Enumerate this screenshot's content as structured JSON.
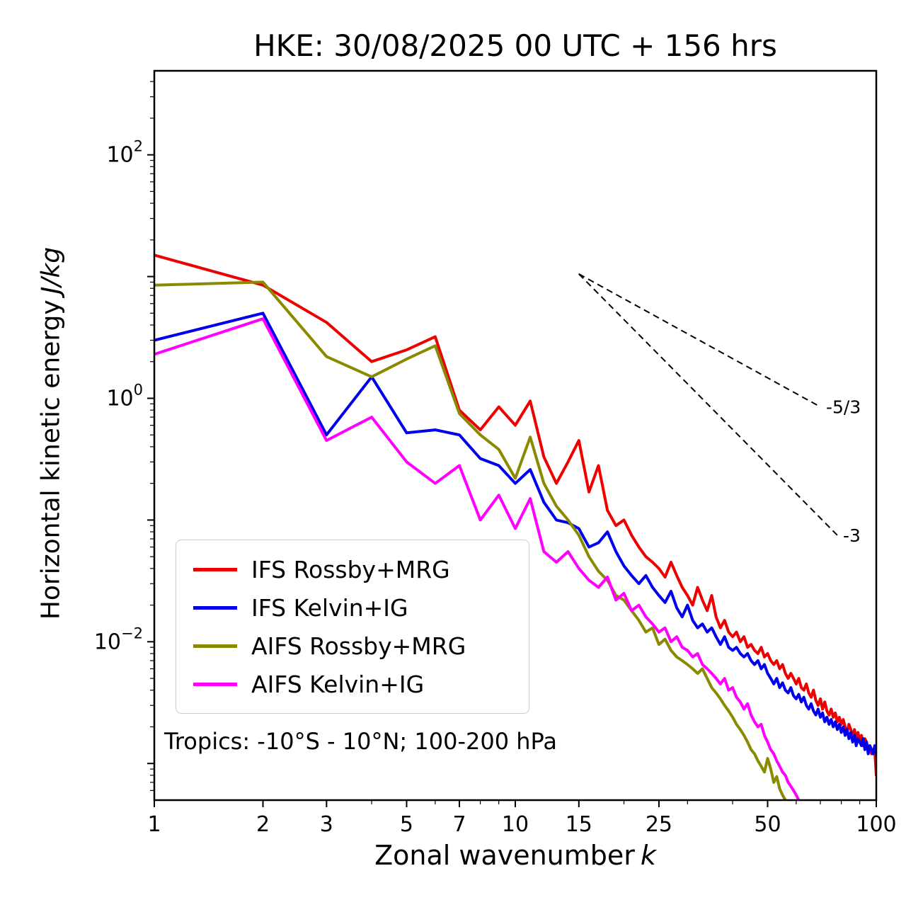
{
  "chart_data": {
    "type": "line",
    "title": "HKE: 30/08/2025 00 UTC + 156 hrs",
    "xlabel_text": "Zonal wavenumber",
    "xlabel_var": "k",
    "ylabel_text": "Horizontal kinetic energy",
    "ylabel_var": "J/kg",
    "annotation": "Tropics: -10°S - 10°N; 100-200 hPa",
    "x_scale": "log",
    "y_scale": "log",
    "xlim": [
      1,
      100
    ],
    "ylim": [
      0.0005,
      490
    ],
    "x_ticks": [
      1,
      2,
      3,
      5,
      7,
      10,
      15,
      25,
      50,
      100
    ],
    "x_minor_ticks": [
      4,
      6,
      8,
      9,
      20,
      30,
      40,
      60,
      70,
      80,
      90
    ],
    "y_tick_exponents": [
      2,
      0,
      -2
    ],
    "legend_position": "lower-left",
    "grid": false,
    "series": [
      {
        "name": "IFS Rossby+MRG",
        "color": "#ee0000",
        "x_start": 1,
        "values": [
          15,
          8.5,
          4.2,
          2.0,
          2.5,
          3.2,
          0.8,
          0.55,
          0.85,
          0.6,
          0.95,
          0.33,
          0.2,
          0.3,
          0.45,
          0.17,
          0.28,
          0.12,
          0.09,
          0.1,
          0.075,
          0.06,
          0.05,
          0.045,
          0.04,
          0.034,
          0.045,
          0.035,
          0.028,
          0.024,
          0.02,
          0.028,
          0.022,
          0.018,
          0.024,
          0.016,
          0.013,
          0.015,
          0.012,
          0.011,
          0.012,
          0.01,
          0.011,
          0.009,
          0.0095,
          0.0085,
          0.008,
          0.009,
          0.0075,
          0.008,
          0.007,
          0.0065,
          0.007,
          0.006,
          0.0065,
          0.0055,
          0.005,
          0.0055,
          0.005,
          0.0045,
          0.005,
          0.0042,
          0.004,
          0.0045,
          0.0038,
          0.0035,
          0.004,
          0.0033,
          0.003,
          0.0034,
          0.0028,
          0.0032,
          0.0027,
          0.0025,
          0.0028,
          0.0024,
          0.0026,
          0.0022,
          0.0024,
          0.0021,
          0.0023,
          0.002,
          0.0018,
          0.0021,
          0.0019,
          0.0017,
          0.0019,
          0.0016,
          0.0018,
          0.0015,
          0.0017,
          0.0014,
          0.0016,
          0.0015,
          0.0013,
          0.0014,
          0.0012,
          0.0013,
          0.0013,
          0.0008
        ]
      },
      {
        "name": "IFS Kelvin+IG",
        "color": "#0000ee",
        "x_start": 1,
        "values": [
          3.0,
          5.0,
          0.5,
          1.5,
          0.52,
          0.55,
          0.5,
          0.32,
          0.28,
          0.2,
          0.26,
          0.14,
          0.1,
          0.095,
          0.085,
          0.06,
          0.065,
          0.08,
          0.055,
          0.042,
          0.035,
          0.03,
          0.035,
          0.028,
          0.024,
          0.021,
          0.026,
          0.019,
          0.016,
          0.02,
          0.015,
          0.013,
          0.014,
          0.012,
          0.013,
          0.011,
          0.0095,
          0.011,
          0.009,
          0.0085,
          0.009,
          0.008,
          0.0075,
          0.008,
          0.007,
          0.0065,
          0.007,
          0.006,
          0.0065,
          0.0055,
          0.005,
          0.0045,
          0.005,
          0.0042,
          0.0046,
          0.004,
          0.0038,
          0.0042,
          0.0036,
          0.0034,
          0.0037,
          0.0032,
          0.0035,
          0.003,
          0.0028,
          0.0031,
          0.0027,
          0.0025,
          0.0028,
          0.0024,
          0.0026,
          0.0022,
          0.0024,
          0.0021,
          0.0023,
          0.002,
          0.0022,
          0.0019,
          0.0021,
          0.0018,
          0.002,
          0.0017,
          0.0019,
          0.0016,
          0.0018,
          0.0015,
          0.0017,
          0.0014,
          0.0016,
          0.0015,
          0.0014,
          0.0016,
          0.0013,
          0.0015,
          0.0012,
          0.0014,
          0.0013,
          0.0012,
          0.0014,
          0.0012
        ]
      },
      {
        "name": "AIFS Rossby+MRG",
        "color": "#8a8a00",
        "x_start": 1,
        "values": [
          8.5,
          9.0,
          2.2,
          1.5,
          2.1,
          2.7,
          0.75,
          0.5,
          0.38,
          0.22,
          0.48,
          0.2,
          0.13,
          0.1,
          0.075,
          0.05,
          0.038,
          0.032,
          0.024,
          0.022,
          0.018,
          0.015,
          0.012,
          0.013,
          0.0095,
          0.0105,
          0.0085,
          0.0075,
          0.007,
          0.0065,
          0.006,
          0.0055,
          0.006,
          0.005,
          0.0042,
          0.0038,
          0.0034,
          0.003,
          0.0027,
          0.0024,
          0.0021,
          0.0019,
          0.0017,
          0.0015,
          0.0013,
          0.0012,
          0.00105,
          0.00095,
          0.00085,
          0.0011,
          0.0009,
          0.0007,
          0.00078,
          0.00062,
          0.00055,
          0.0005,
          0.00045,
          0.0004,
          0.00042,
          0.00035,
          0.0003,
          0.00032
        ]
      },
      {
        "name": "AIFS Kelvin+IG",
        "color": "#ff00ff",
        "x_start": 1,
        "values": [
          2.3,
          4.5,
          0.45,
          0.7,
          0.3,
          0.2,
          0.28,
          0.1,
          0.16,
          0.085,
          0.15,
          0.055,
          0.045,
          0.055,
          0.04,
          0.032,
          0.028,
          0.034,
          0.022,
          0.025,
          0.018,
          0.02,
          0.016,
          0.014,
          0.012,
          0.013,
          0.01,
          0.011,
          0.009,
          0.0085,
          0.0075,
          0.008,
          0.0065,
          0.006,
          0.0055,
          0.005,
          0.0045,
          0.005,
          0.004,
          0.0042,
          0.0035,
          0.0032,
          0.0028,
          0.0031,
          0.0025,
          0.0022,
          0.002,
          0.0021,
          0.0017,
          0.0015,
          0.0013,
          0.0012,
          0.00105,
          0.00095,
          0.00085,
          0.0008,
          0.0007,
          0.00065,
          0.0006,
          0.00055,
          0.0005,
          0.00042
        ]
      }
    ],
    "reference_lines": [
      {
        "label": "-5/3",
        "x": [
          15,
          70
        ],
        "y": [
          10.5,
          0.85
        ]
      },
      {
        "label": "-3",
        "x": [
          15,
          78
        ],
        "y": [
          10.5,
          0.075
        ]
      }
    ]
  }
}
